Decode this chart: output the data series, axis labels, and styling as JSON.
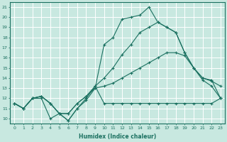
{
  "title": "",
  "xlabel": "Humidex (Indice chaleur)",
  "ylabel": "",
  "bg_color": "#c8e8e0",
  "grid_color": "#ffffff",
  "line_color": "#1a7060",
  "xlim": [
    -0.5,
    23.5
  ],
  "ylim": [
    9.5,
    21.5
  ],
  "yticks": [
    10,
    11,
    12,
    13,
    14,
    15,
    16,
    17,
    18,
    19,
    20,
    21
  ],
  "xticks": [
    0,
    1,
    2,
    3,
    4,
    5,
    6,
    7,
    8,
    9,
    10,
    11,
    12,
    13,
    14,
    15,
    16,
    17,
    18,
    19,
    20,
    21,
    22,
    23
  ],
  "series": [
    [
      11.5,
      11.0,
      12.0,
      12.0,
      10.0,
      10.5,
      9.8,
      11.0,
      12.0,
      13.2,
      11.5,
      11.5,
      11.5,
      11.5,
      11.5,
      11.5,
      11.5,
      11.5,
      11.5,
      11.5,
      11.5,
      11.5,
      11.5,
      12.0
    ],
    [
      11.5,
      11.0,
      12.0,
      12.2,
      11.5,
      10.5,
      10.5,
      11.5,
      12.2,
      13.0,
      13.2,
      13.5,
      14.0,
      14.5,
      15.0,
      15.5,
      16.0,
      16.5,
      16.5,
      16.2,
      15.0,
      13.8,
      13.2,
      12.0
    ],
    [
      11.5,
      11.0,
      12.0,
      12.2,
      11.5,
      10.5,
      10.5,
      11.5,
      12.2,
      13.2,
      14.0,
      15.0,
      16.3,
      17.3,
      18.5,
      19.0,
      19.5,
      19.0,
      18.5,
      16.5,
      15.0,
      14.0,
      13.7,
      13.2
    ],
    [
      11.5,
      11.0,
      12.0,
      12.2,
      11.5,
      10.5,
      9.8,
      11.0,
      11.8,
      13.0,
      17.3,
      18.0,
      19.8,
      20.0,
      20.2,
      21.0,
      19.5,
      19.0,
      18.5,
      16.5,
      15.0,
      14.0,
      13.8,
      12.0
    ]
  ]
}
